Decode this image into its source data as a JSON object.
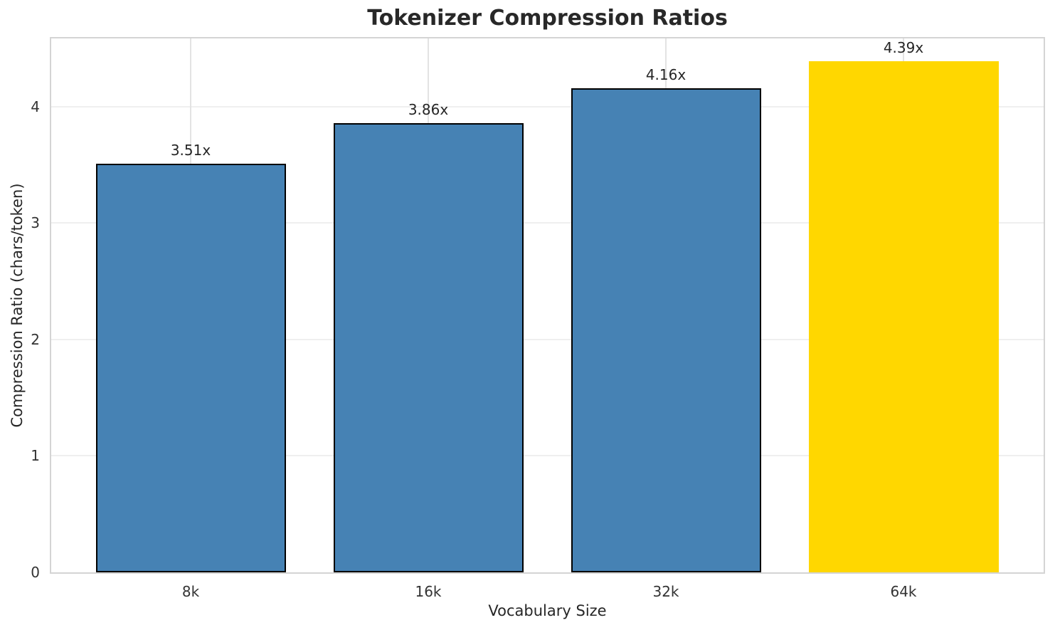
{
  "chart_data": {
    "type": "bar",
    "title": "Tokenizer Compression Ratios",
    "xlabel": "Vocabulary Size",
    "ylabel": "Compression Ratio (chars/token)",
    "categories": [
      "8k",
      "16k",
      "32k",
      "64k"
    ],
    "values": [
      3.51,
      3.86,
      4.16,
      4.39
    ],
    "bar_labels": [
      "3.51x",
      "3.86x",
      "4.16x",
      "4.39x"
    ],
    "yticks": [
      0,
      1,
      2,
      3,
      4
    ],
    "ylim": [
      0,
      4.585
    ],
    "grid": true,
    "legend": "none",
    "bar_colors": [
      "#4682B4",
      "#4682B4",
      "#4682B4",
      "#FFD700"
    ],
    "bar_edge_colors": [
      "#000000",
      "#000000",
      "#000000",
      "none"
    ],
    "highlight_index": 3,
    "colors": {
      "grid_h": "#efefef",
      "grid_v": "#e3e3e3",
      "spine": "#d4d4d4",
      "text": "#262626",
      "background": "#ffffff"
    }
  }
}
